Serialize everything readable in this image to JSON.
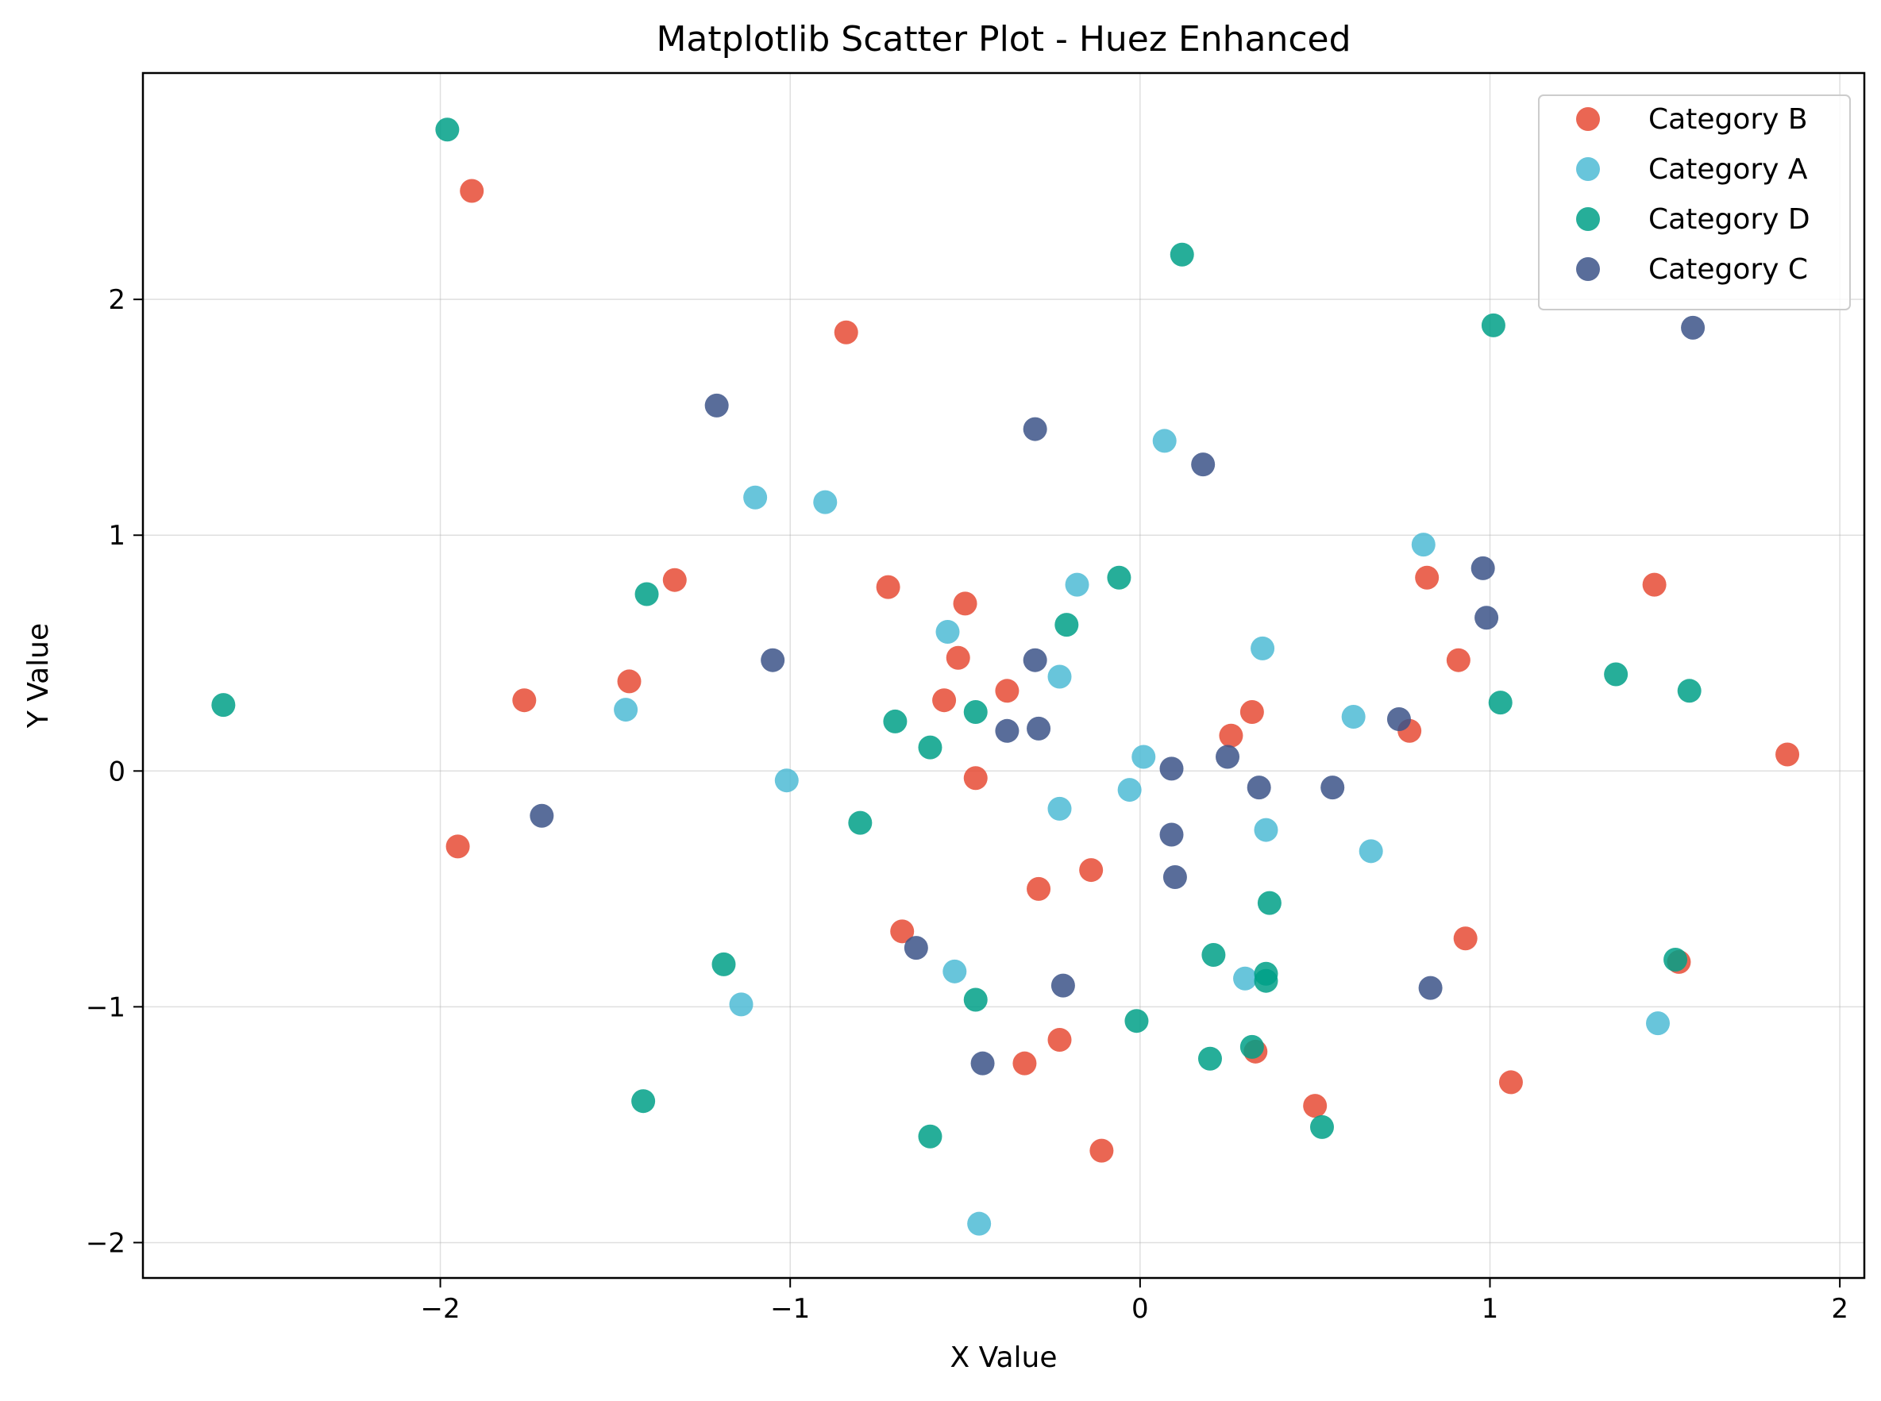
{
  "chart_data": {
    "type": "scatter",
    "title": "Matplotlib Scatter Plot - Huez Enhanced",
    "xlabel": "X Value",
    "ylabel": "Y Value",
    "xlim": [
      -2.85,
      2.07
    ],
    "ylim": [
      -2.15,
      2.96
    ],
    "xticks": [
      {
        "value": -2,
        "label": "−2"
      },
      {
        "value": -1,
        "label": "−1"
      },
      {
        "value": 0,
        "label": "0"
      },
      {
        "value": 1,
        "label": "1"
      },
      {
        "value": 2,
        "label": "2"
      }
    ],
    "yticks": [
      {
        "value": -2,
        "label": "−2"
      },
      {
        "value": -1,
        "label": "−1"
      },
      {
        "value": 0,
        "label": "0"
      },
      {
        "value": 1,
        "label": "1"
      },
      {
        "value": 2,
        "label": "2"
      }
    ],
    "grid": true,
    "legend_position": "top-right",
    "series": [
      {
        "name": "Category B",
        "color": "#e64b35",
        "points": [
          [
            -1.91,
            2.46
          ],
          [
            -0.84,
            1.86
          ],
          [
            -1.33,
            0.81
          ],
          [
            -0.72,
            0.78
          ],
          [
            -0.5,
            0.71
          ],
          [
            -0.52,
            0.48
          ],
          [
            -1.46,
            0.38
          ],
          [
            -1.76,
            0.3
          ],
          [
            -0.56,
            0.3
          ],
          [
            -0.38,
            0.34
          ],
          [
            -0.47,
            -0.03
          ],
          [
            -1.95,
            -0.32
          ],
          [
            -0.14,
            -0.42
          ],
          [
            -0.29,
            -0.5
          ],
          [
            -0.68,
            -0.68
          ],
          [
            -0.23,
            -1.14
          ],
          [
            -0.33,
            -1.24
          ],
          [
            -0.11,
            -1.61
          ],
          [
            0.32,
            0.25
          ],
          [
            0.26,
            0.15
          ],
          [
            0.82,
            0.82
          ],
          [
            0.91,
            0.47
          ],
          [
            0.77,
            0.17
          ],
          [
            0.93,
            -0.71
          ],
          [
            0.33,
            -1.19
          ],
          [
            0.5,
            -1.42
          ],
          [
            1.06,
            -1.32
          ],
          [
            1.47,
            0.79
          ],
          [
            1.54,
            -0.81
          ],
          [
            1.85,
            0.07
          ]
        ]
      },
      {
        "name": "Category A",
        "color": "#4dbbd5",
        "points": [
          [
            -1.1,
            1.16
          ],
          [
            -0.9,
            1.14
          ],
          [
            -1.47,
            0.26
          ],
          [
            -1.01,
            -0.04
          ],
          [
            -1.14,
            -0.99
          ],
          [
            -0.55,
            0.59
          ],
          [
            -0.53,
            -0.85
          ],
          [
            -0.46,
            -1.92
          ],
          [
            -0.18,
            0.79
          ],
          [
            -0.23,
            0.4
          ],
          [
            -0.23,
            -0.16
          ],
          [
            0.07,
            1.4
          ],
          [
            0.01,
            0.06
          ],
          [
            -0.03,
            -0.08
          ],
          [
            0.35,
            0.52
          ],
          [
            0.36,
            -0.25
          ],
          [
            0.3,
            -0.88
          ],
          [
            0.61,
            0.23
          ],
          [
            0.66,
            -0.34
          ],
          [
            0.81,
            0.96
          ],
          [
            1.48,
            -1.07
          ]
        ]
      },
      {
        "name": "Category D",
        "color": "#00a087",
        "points": [
          [
            -1.98,
            2.72
          ],
          [
            -2.62,
            0.28
          ],
          [
            -1.41,
            0.75
          ],
          [
            -1.19,
            -0.82
          ],
          [
            -1.42,
            -1.4
          ],
          [
            -0.7,
            0.21
          ],
          [
            -0.6,
            0.1
          ],
          [
            -0.8,
            -0.22
          ],
          [
            -0.47,
            0.25
          ],
          [
            -0.47,
            -0.97
          ],
          [
            -0.6,
            -1.55
          ],
          [
            -0.21,
            0.62
          ],
          [
            -0.06,
            0.82
          ],
          [
            0.12,
            2.19
          ],
          [
            0.37,
            -0.56
          ],
          [
            0.21,
            -0.78
          ],
          [
            0.36,
            -0.86
          ],
          [
            0.36,
            -0.89
          ],
          [
            -0.01,
            -1.06
          ],
          [
            0.2,
            -1.22
          ],
          [
            0.32,
            -1.17
          ],
          [
            0.52,
            -1.51
          ],
          [
            1.01,
            1.89
          ],
          [
            1.03,
            0.29
          ],
          [
            1.36,
            0.41
          ],
          [
            1.57,
            0.34
          ],
          [
            1.53,
            -0.8
          ]
        ]
      },
      {
        "name": "Category C",
        "color": "#3c5488",
        "points": [
          [
            -1.21,
            1.55
          ],
          [
            -0.3,
            1.45
          ],
          [
            -1.05,
            0.47
          ],
          [
            -0.3,
            0.47
          ],
          [
            -0.38,
            0.17
          ],
          [
            -0.29,
            0.18
          ],
          [
            -1.71,
            -0.19
          ],
          [
            -0.64,
            -0.75
          ],
          [
            -0.22,
            -0.91
          ],
          [
            -0.45,
            -1.24
          ],
          [
            0.18,
            1.3
          ],
          [
            0.09,
            0.01
          ],
          [
            0.25,
            0.06
          ],
          [
            0.09,
            -0.27
          ],
          [
            0.1,
            -0.45
          ],
          [
            0.34,
            -0.07
          ],
          [
            0.55,
            -0.07
          ],
          [
            0.74,
            0.22
          ],
          [
            0.98,
            0.86
          ],
          [
            0.99,
            0.65
          ],
          [
            0.83,
            -0.92
          ],
          [
            1.58,
            1.88
          ]
        ]
      }
    ]
  }
}
